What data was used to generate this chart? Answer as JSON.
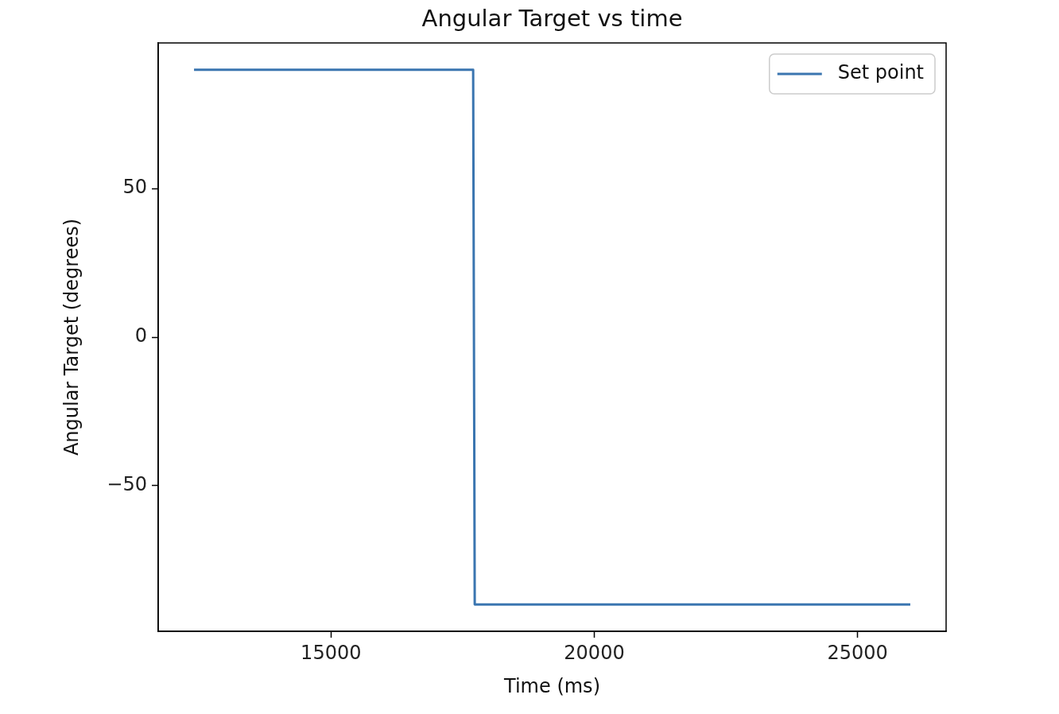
{
  "chart_data": {
    "type": "line",
    "title": "Angular Target vs time",
    "xlabel": "Time (ms)",
    "ylabel": "Angular Target (degrees)",
    "series": [
      {
        "name": "Set point",
        "color": "#3a75b0",
        "x": [
          12400,
          17700,
          17730,
          26000
        ],
        "values": [
          90,
          90,
          -90,
          -90
        ]
      }
    ],
    "xlim": [
      11720,
      26680
    ],
    "xticks": [
      15000,
      20000,
      25000
    ],
    "ylim": [
      -99,
      99
    ],
    "yticks": [
      -50,
      0,
      50
    ],
    "grid": false,
    "legend": "top right",
    "marker": "none",
    "line_style": "solid"
  }
}
